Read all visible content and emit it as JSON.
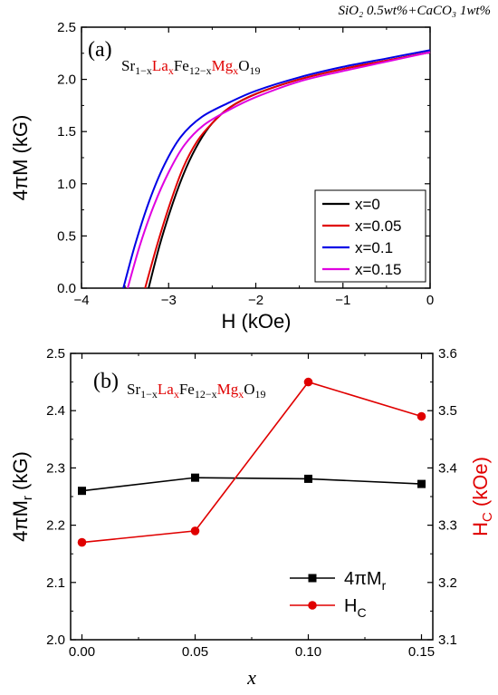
{
  "header_note": "SiO₂ 0.5wt%+CaCO₃ 1wt%",
  "chart_data": [
    {
      "type": "line",
      "panel_label": "(a)",
      "formula": {
        "p1": "Sr",
        "s1": "1−x",
        "p2": "La",
        "s2": "x",
        "p3": "Fe",
        "s3": "12−x",
        "p4": "Mg",
        "s4": "x",
        "p5": "O",
        "s5": "19"
      },
      "xlabel": "H (kOe)",
      "ylabel": "4πM (kG)",
      "xlim": [
        -4,
        0
      ],
      "ylim": [
        0.0,
        2.5
      ],
      "xticks": [
        "−4",
        "−3",
        "−2",
        "−1",
        "0"
      ],
      "yticks": [
        "0.0",
        "0.5",
        "1.0",
        "1.5",
        "2.0",
        "2.5"
      ],
      "legend_position": "bottom-right",
      "series": [
        {
          "name": "x=0",
          "color": "#000000",
          "x": [
            -3.23,
            -3.1,
            -2.95,
            -2.8,
            -2.65,
            -2.5,
            -2.3,
            -2.0,
            -1.5,
            -1.0,
            -0.5,
            0.0
          ],
          "y": [
            0.0,
            0.42,
            0.82,
            1.15,
            1.4,
            1.58,
            1.73,
            1.86,
            2.0,
            2.1,
            2.18,
            2.26
          ]
        },
        {
          "name": "x=0.05",
          "color": "#e00000",
          "x": [
            -3.27,
            -3.13,
            -2.98,
            -2.83,
            -2.67,
            -2.5,
            -2.3,
            -2.0,
            -1.5,
            -1.0,
            -0.5,
            0.0
          ],
          "y": [
            0.0,
            0.42,
            0.82,
            1.16,
            1.41,
            1.58,
            1.73,
            1.86,
            2.0,
            2.1,
            2.18,
            2.26
          ]
        },
        {
          "name": "x=0.1",
          "color": "#0000e6",
          "x": [
            -3.52,
            -3.38,
            -3.22,
            -3.05,
            -2.86,
            -2.62,
            -2.3,
            -2.0,
            -1.5,
            -1.0,
            -0.5,
            0.0
          ],
          "y": [
            0.0,
            0.43,
            0.84,
            1.18,
            1.45,
            1.64,
            1.78,
            1.89,
            2.02,
            2.12,
            2.2,
            2.28
          ]
        },
        {
          "name": "x=0.15",
          "color": "#e000e0",
          "x": [
            -3.47,
            -3.33,
            -3.17,
            -3.0,
            -2.82,
            -2.6,
            -2.3,
            -2.0,
            -1.5,
            -1.0,
            -0.5,
            0.0
          ],
          "y": [
            0.0,
            0.41,
            0.79,
            1.11,
            1.37,
            1.56,
            1.71,
            1.83,
            1.98,
            2.08,
            2.17,
            2.26
          ]
        }
      ]
    },
    {
      "type": "line",
      "panel_label": "(b)",
      "formula": {
        "p1": "Sr",
        "s1": "1−x",
        "p2": "La",
        "s2": "x",
        "p3": "Fe",
        "s3": "12−x",
        "p4": "Mg",
        "s4": "x",
        "p5": "O",
        "s5": "19"
      },
      "categories": [
        0.0,
        0.05,
        0.1,
        0.15
      ],
      "xlabel": "x",
      "ylabel_left": "4πM",
      "ylabel_left_sub": "r",
      "ylabel_left_unit": " (kG)",
      "ylabel_right": "H",
      "ylabel_right_sub": "C",
      "ylabel_right_unit": " (kOe)",
      "xlim": [
        -0.005,
        0.155
      ],
      "ylim_left": [
        2.0,
        2.5
      ],
      "ylim_right": [
        3.1,
        3.6
      ],
      "xticks": [
        "0.00",
        "0.05",
        "0.10",
        "0.15"
      ],
      "yticks_left": [
        "2.0",
        "2.1",
        "2.2",
        "2.3",
        "2.4",
        "2.5"
      ],
      "yticks_right": [
        "3.1",
        "3.2",
        "3.3",
        "3.4",
        "3.5",
        "3.6"
      ],
      "legend_position": "bottom-right",
      "series": [
        {
          "name": "4πM",
          "name_sub": "r",
          "axis": "left",
          "marker": "square",
          "color": "#000000",
          "values": [
            2.26,
            2.283,
            2.281,
            2.272
          ]
        },
        {
          "name": "H",
          "name_sub": "C",
          "axis": "right",
          "marker": "circle",
          "color": "#e00000",
          "values": [
            3.27,
            3.29,
            3.55,
            3.49
          ]
        }
      ]
    }
  ]
}
